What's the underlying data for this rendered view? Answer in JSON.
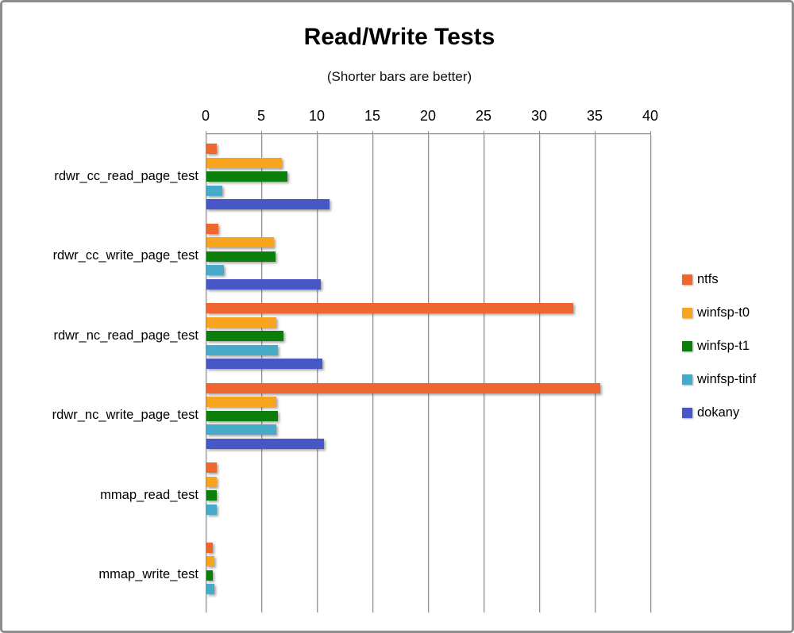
{
  "window": {
    "background": "#ffffff",
    "frame_border_color": "#8d8d8d"
  },
  "chart_data": {
    "type": "bar",
    "orientation": "horizontal",
    "title": "Read/Write Tests",
    "subtitle": "(Shorter bars are better)",
    "note": "shorter bars are better",
    "categories": [
      "rdwr_cc_read_page_test",
      "rdwr_cc_write_page_test",
      "rdwr_nc_read_page_test",
      "rdwr_nc_write_page_test",
      "mmap_read_test",
      "mmap_write_test"
    ],
    "series": [
      {
        "name": "ntfs",
        "color": "#ed672f",
        "values": [
          0.9,
          1.1,
          33.0,
          35.4,
          0.9,
          0.6
        ]
      },
      {
        "name": "winfsp-t0",
        "color": "#f8a41f",
        "values": [
          6.8,
          6.1,
          6.3,
          6.3,
          0.9,
          0.7
        ]
      },
      {
        "name": "winfsp-t1",
        "color": "#0b7e0c",
        "values": [
          7.3,
          6.2,
          6.9,
          6.4,
          0.9,
          0.6
        ]
      },
      {
        "name": "winfsp-tinf",
        "color": "#45abc9",
        "values": [
          1.4,
          1.6,
          6.4,
          6.3,
          0.9,
          0.7
        ]
      },
      {
        "name": "dokany",
        "color": "#4757c5",
        "values": [
          11.1,
          10.3,
          10.4,
          10.6,
          0,
          0
        ]
      }
    ],
    "x_ticks": [
      0,
      5,
      10,
      15,
      20,
      25,
      30,
      35,
      40
    ],
    "xlim": [
      0,
      40
    ],
    "axis_position": "top",
    "grid": "vertical",
    "legend_position": "right",
    "gridline_color": "#8f8f8f",
    "text_color": "#000000"
  }
}
